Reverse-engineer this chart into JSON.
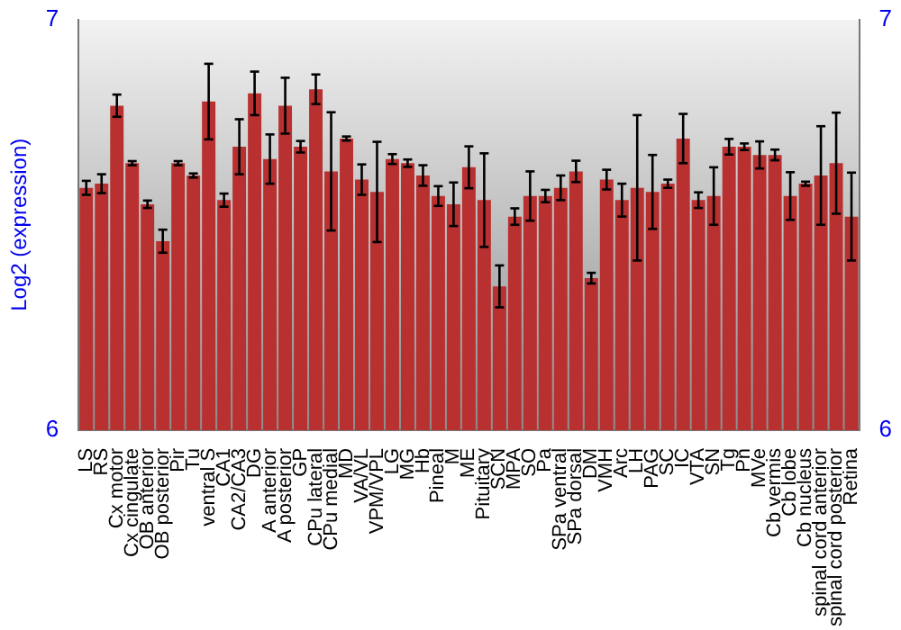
{
  "chart_data": {
    "type": "bar",
    "ylabel": "Log2 (expression)",
    "categories": [
      "LS",
      "RS",
      "Cx motor",
      "Cx cingulate",
      "OB anterior",
      "OB posterior",
      "Pir",
      "Tu",
      "ventral S",
      "CA1",
      "CA2/CA3",
      "DG",
      "A anterior",
      "A posterior",
      "GP",
      "CPu lateral",
      "CPu medial",
      "MD",
      "VA/VL",
      "VPM/VPL",
      "LG",
      "MG",
      "Hb",
      "Pineal",
      "M",
      "ME",
      "Pituitary",
      "SCN",
      "MPA",
      "SO",
      "Pa",
      "SPa ventral",
      "SPa dorsal",
      "DM",
      "VMH",
      "Arc",
      "LH",
      "PAG",
      "SC",
      "IC",
      "VTA",
      "SN",
      "Tg",
      "Pn",
      "MVe",
      "Cb vermis",
      "Cb lobe",
      "Cb nucleus",
      "spinal cord anterior",
      "spinal cord posterior",
      "Retina"
    ],
    "values": [
      6.59,
      6.6,
      6.79,
      6.65,
      6.55,
      6.46,
      6.65,
      6.62,
      6.8,
      6.56,
      6.69,
      6.82,
      6.66,
      6.79,
      6.69,
      6.83,
      6.63,
      6.71,
      6.61,
      6.58,
      6.66,
      6.65,
      6.62,
      6.57,
      6.55,
      6.64,
      6.56,
      6.35,
      6.52,
      6.57,
      6.57,
      6.59,
      6.63,
      6.37,
      6.61,
      6.56,
      6.59,
      6.58,
      6.6,
      6.71,
      6.56,
      6.57,
      6.69,
      6.69,
      6.67,
      6.67,
      6.57,
      6.6,
      6.62,
      6.65,
      6.52
    ],
    "errors": [
      0.017,
      0.023,
      0.027,
      0.005,
      0.009,
      0.028,
      0.005,
      0.005,
      0.092,
      0.016,
      0.067,
      0.053,
      0.06,
      0.068,
      0.014,
      0.036,
      0.144,
      0.005,
      0.037,
      0.122,
      0.012,
      0.009,
      0.025,
      0.024,
      0.053,
      0.051,
      0.114,
      0.051,
      0.02,
      0.06,
      0.015,
      0.03,
      0.026,
      0.013,
      0.024,
      0.04,
      0.177,
      0.09,
      0.01,
      0.06,
      0.019,
      0.07,
      0.019,
      0.008,
      0.033,
      0.013,
      0.058,
      0.005,
      0.12,
      0.123,
      0.107
    ],
    "color": "#b83030",
    "ylim": [
      6,
      7
    ],
    "yticks": [
      6,
      7
    ],
    "y2lim": [
      6,
      7
    ],
    "y2ticks": [
      6,
      7
    ]
  }
}
